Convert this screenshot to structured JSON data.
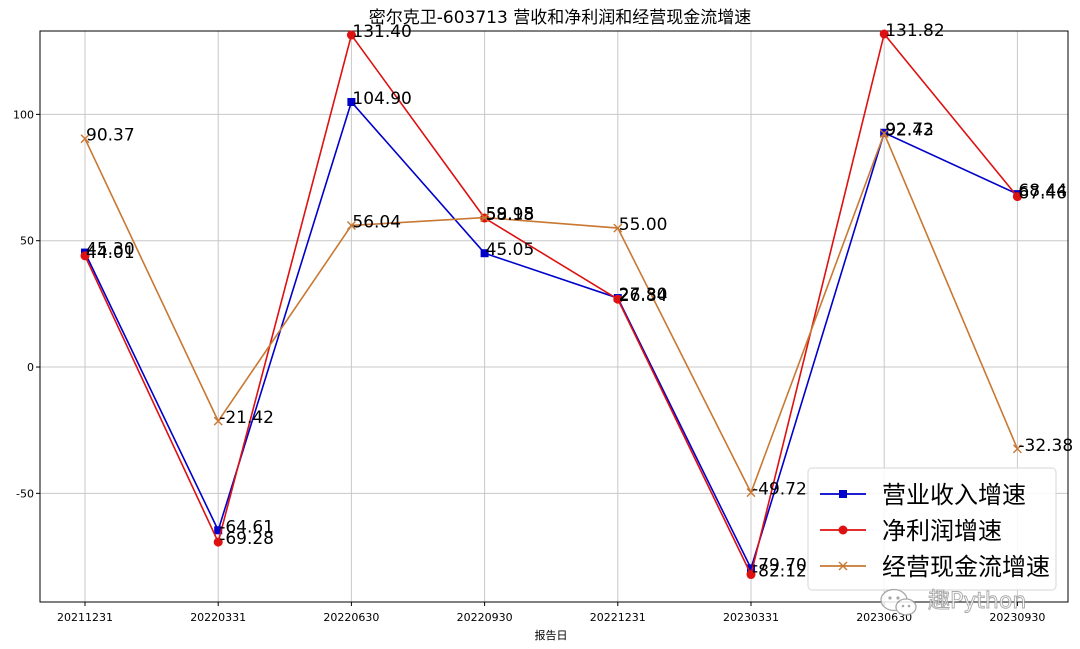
{
  "chart_data": {
    "type": "line",
    "title": "密尔克卫-603713 营收和净利润和经营现金流增速",
    "xlabel": "报告日",
    "ylabel": "",
    "categories": [
      "20211231",
      "20220331",
      "20220630",
      "20220930",
      "20221231",
      "20230331",
      "20230630",
      "20230930"
    ],
    "ylim": [
      -93,
      133
    ],
    "yticks": [
      -50,
      0,
      50,
      100
    ],
    "grid": true,
    "legend_position": "lower-right",
    "series": [
      {
        "name": "营业收入增速",
        "color": "#0000cc",
        "marker": "square",
        "values": [
          45.3,
          -64.61,
          104.9,
          45.05,
          27.3,
          -79.7,
          92.72,
          68.44
        ],
        "labels": [
          "45.30",
          "-64.61",
          "104.90",
          "45.05",
          "27.30",
          "-79.70",
          "92.72",
          "68.44"
        ]
      },
      {
        "name": "净利润增速",
        "color": "#dd1111",
        "marker": "circle",
        "values": [
          44.01,
          -69.28,
          131.4,
          58.98,
          26.84,
          -82.12,
          131.82,
          67.46
        ],
        "labels": [
          "44.01",
          "-69.28",
          "131.40",
          "58.98",
          "26.84",
          "-82.12",
          "131.82",
          "67.46"
        ]
      },
      {
        "name": "经营现金流增速",
        "color": "#c87832",
        "marker": "x",
        "values": [
          90.37,
          -21.42,
          56.04,
          59.15,
          55.0,
          -49.72,
          92.43,
          -32.38
        ],
        "labels": [
          "90.37",
          "-21.42",
          "56.04",
          "59.15",
          "55.00",
          "-49.72",
          "92.43",
          "-32.38"
        ]
      }
    ]
  },
  "watermark": {
    "text": "趣Python",
    "icon": "wechat-icon"
  }
}
